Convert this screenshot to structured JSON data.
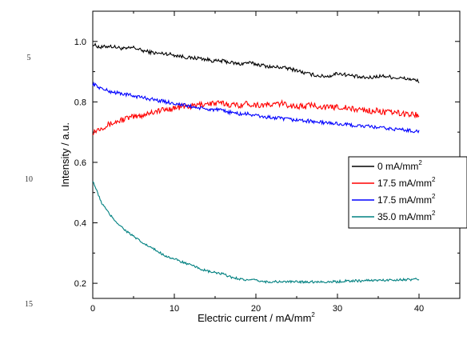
{
  "line_numbers": [
    "5",
    "10",
    "15"
  ],
  "chart_data": {
    "type": "line",
    "xlabel": "Electric current / mA/mm",
    "xlabel_sup": "2",
    "ylabel": "Intensity / a.u.",
    "xlim": [
      0,
      45
    ],
    "ylim": [
      0.15,
      1.1
    ],
    "x_ticks": [
      "0",
      "10",
      "20",
      "30",
      "40"
    ],
    "y_ticks": [
      "0.2",
      "0.4",
      "0.6",
      "0.8",
      "1.0"
    ],
    "grid": false,
    "legend_position": "right",
    "series": [
      {
        "name": "0 mA/mm",
        "name_sup": "2",
        "color": "#000000",
        "x": [
          0,
          1,
          2,
          3,
          4,
          5,
          6,
          7,
          8,
          9,
          10,
          11,
          12,
          13,
          14,
          15,
          16,
          17,
          18,
          19,
          20,
          21,
          22,
          23,
          24,
          25,
          26,
          27,
          28,
          29,
          30,
          31,
          32,
          33,
          34,
          35,
          36,
          37,
          38,
          39,
          40
        ],
        "y": [
          0.99,
          0.98,
          0.985,
          0.98,
          0.975,
          0.98,
          0.97,
          0.965,
          0.96,
          0.96,
          0.955,
          0.95,
          0.945,
          0.945,
          0.94,
          0.935,
          0.935,
          0.93,
          0.925,
          0.93,
          0.925,
          0.92,
          0.915,
          0.915,
          0.91,
          0.905,
          0.895,
          0.89,
          0.885,
          0.885,
          0.895,
          0.89,
          0.885,
          0.88,
          0.88,
          0.885,
          0.885,
          0.88,
          0.878,
          0.875,
          0.868
        ]
      },
      {
        "name": "17.5 mA/mm",
        "name_sup": "2",
        "color": "#ff0000",
        "x": [
          0,
          1,
          2,
          3,
          4,
          5,
          6,
          7,
          8,
          9,
          10,
          11,
          12,
          13,
          14,
          15,
          16,
          17,
          18,
          19,
          20,
          21,
          22,
          23,
          24,
          25,
          26,
          27,
          28,
          29,
          30,
          31,
          32,
          33,
          34,
          35,
          36,
          37,
          38,
          39,
          40
        ],
        "y": [
          0.7,
          0.715,
          0.725,
          0.735,
          0.745,
          0.75,
          0.755,
          0.765,
          0.77,
          0.775,
          0.78,
          0.785,
          0.785,
          0.79,
          0.795,
          0.795,
          0.795,
          0.79,
          0.79,
          0.795,
          0.79,
          0.79,
          0.79,
          0.795,
          0.79,
          0.785,
          0.785,
          0.79,
          0.785,
          0.78,
          0.785,
          0.78,
          0.775,
          0.775,
          0.77,
          0.77,
          0.765,
          0.765,
          0.76,
          0.76,
          0.755
        ]
      },
      {
        "name": "17.5 mA/mm",
        "name_sup": "2",
        "color": "#0000ff",
        "x": [
          0,
          1,
          2,
          3,
          4,
          5,
          6,
          7,
          8,
          9,
          10,
          11,
          12,
          13,
          14,
          15,
          16,
          17,
          18,
          19,
          20,
          21,
          22,
          23,
          24,
          25,
          26,
          27,
          28,
          29,
          30,
          31,
          32,
          33,
          34,
          35,
          36,
          37,
          38,
          39,
          40
        ],
        "y": [
          0.86,
          0.845,
          0.835,
          0.83,
          0.825,
          0.82,
          0.815,
          0.81,
          0.805,
          0.8,
          0.795,
          0.79,
          0.785,
          0.78,
          0.775,
          0.775,
          0.77,
          0.765,
          0.76,
          0.76,
          0.755,
          0.75,
          0.748,
          0.745,
          0.742,
          0.74,
          0.738,
          0.735,
          0.732,
          0.73,
          0.728,
          0.725,
          0.722,
          0.72,
          0.718,
          0.715,
          0.712,
          0.71,
          0.708,
          0.705,
          0.702
        ]
      },
      {
        "name": "35.0 mA/mm",
        "name_sup": "2",
        "color": "#008080",
        "x": [
          0,
          1,
          2,
          3,
          4,
          5,
          6,
          7,
          8,
          9,
          10,
          11,
          12,
          13,
          14,
          15,
          16,
          17,
          18,
          19,
          20,
          21,
          22,
          23,
          24,
          25,
          26,
          27,
          28,
          29,
          30,
          31,
          32,
          33,
          34,
          35,
          36,
          37,
          38,
          39,
          40
        ],
        "y": [
          0.54,
          0.47,
          0.43,
          0.4,
          0.375,
          0.355,
          0.335,
          0.32,
          0.305,
          0.29,
          0.28,
          0.27,
          0.26,
          0.25,
          0.24,
          0.235,
          0.23,
          0.22,
          0.215,
          0.21,
          0.21,
          0.205,
          0.205,
          0.205,
          0.205,
          0.205,
          0.205,
          0.205,
          0.205,
          0.205,
          0.205,
          0.208,
          0.208,
          0.208,
          0.21,
          0.21,
          0.21,
          0.212,
          0.212,
          0.212,
          0.214
        ]
      }
    ]
  }
}
